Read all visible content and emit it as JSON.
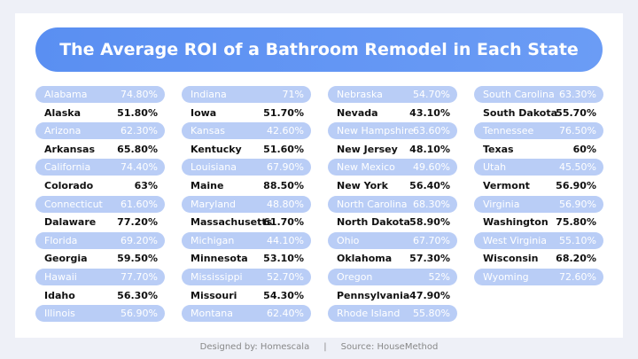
{
  "header": {
    "title": "The Average ROI of a Bathroom Remodel in Each State"
  },
  "table": {
    "columns": [
      [
        [
          "Alabama",
          "74.80%"
        ],
        [
          "Alaska",
          "51.80%"
        ],
        [
          "Arizona",
          "62.30%"
        ],
        [
          "Arkansas",
          "65.80%"
        ],
        [
          "California",
          "74.40%"
        ],
        [
          "Colorado",
          "63%"
        ],
        [
          "Connecticut",
          "61.60%"
        ],
        [
          "Dalaware",
          "77.20%"
        ],
        [
          "Florida",
          "69.20%"
        ],
        [
          "Georgia",
          "59.50%"
        ],
        [
          "Hawaii",
          "77.70%"
        ],
        [
          "Idaho",
          "56.30%"
        ],
        [
          "Illinois",
          "56.90%"
        ]
      ],
      [
        [
          "Indiana",
          "71%"
        ],
        [
          "Iowa",
          "51.70%"
        ],
        [
          "Kansas",
          "42.60%"
        ],
        [
          "Kentucky",
          "51.60%"
        ],
        [
          "Louisiana",
          "67.90%"
        ],
        [
          "Maine",
          "88.50%"
        ],
        [
          "Maryland",
          "48.80%"
        ],
        [
          "Massachusetts",
          "61.70%"
        ],
        [
          "Michigan",
          "44.10%"
        ],
        [
          "Minnesota",
          "53.10%"
        ],
        [
          "Mississippi",
          "52.70%"
        ],
        [
          "Missouri",
          "54.30%"
        ],
        [
          "Montana",
          "62.40%"
        ]
      ],
      [
        [
          "Nebraska",
          "54.70%"
        ],
        [
          "Nevada",
          "43.10%"
        ],
        [
          "New Hampshire",
          "63.60%"
        ],
        [
          "New Jersey",
          "48.10%"
        ],
        [
          "New Mexico",
          "49.60%"
        ],
        [
          "New York",
          "56.40%"
        ],
        [
          "North Carolina",
          "68.30%"
        ],
        [
          "North Dakota",
          "58.90%"
        ],
        [
          "Ohio",
          "67.70%"
        ],
        [
          "Oklahoma",
          "57.30%"
        ],
        [
          "Oregon",
          "52%"
        ],
        [
          "Pennsylvania",
          "47.90%"
        ],
        [
          "Rhode Island",
          "55.80%"
        ]
      ],
      [
        [
          "South Carolina",
          "63.30%"
        ],
        [
          "South Dakota",
          "55.70%"
        ],
        [
          "Tennessee",
          "76.50%"
        ],
        [
          "Texas",
          "60%"
        ],
        [
          "Utah",
          "45.50%"
        ],
        [
          "Vermont",
          "56.90%"
        ],
        [
          "Virginia",
          "56.90%"
        ],
        [
          "Washington",
          "75.80%"
        ],
        [
          "West Virginia",
          "55.10%"
        ],
        [
          "Wisconsin",
          "68.20%"
        ],
        [
          "Wyoming",
          "72.60%"
        ]
      ]
    ]
  },
  "footer": {
    "designer": "Designed by: Homescala",
    "separator": "|",
    "source": "Source: HouseMethod"
  }
}
